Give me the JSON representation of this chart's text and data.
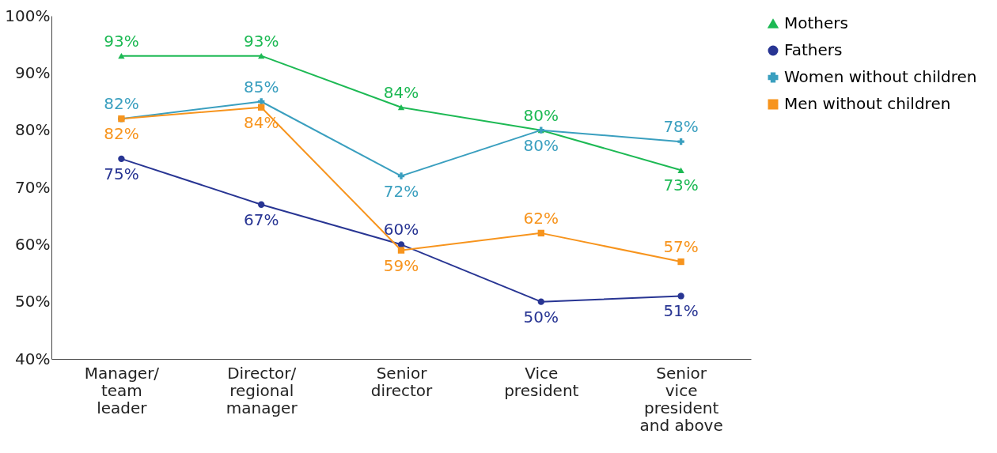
{
  "chart_data": {
    "type": "line",
    "categories": [
      "Manager/ team leader",
      "Director/ regional manager",
      "Senior director",
      "Vice president",
      "Senior vice president and above"
    ],
    "series": [
      {
        "name": "Mothers",
        "color": "#1db954",
        "marker": "triangle",
        "values": [
          93,
          93,
          84,
          80,
          73
        ],
        "value_labels": [
          "93%",
          "93%",
          "84%",
          "80%",
          "73%"
        ]
      },
      {
        "name": "Fathers",
        "color": "#283593",
        "marker": "circle",
        "values": [
          75,
          67,
          60,
          50,
          51
        ],
        "value_labels": [
          "75%",
          "67%",
          "60%",
          "50%",
          "51%"
        ]
      },
      {
        "name": "Women without children",
        "color": "#3a9fbf",
        "marker": "cross",
        "values": [
          82,
          85,
          72,
          80,
          78
        ],
        "value_labels": [
          "82%",
          "85%",
          "72%",
          "80%",
          "78%"
        ]
      },
      {
        "name": "Men without children",
        "color": "#f7941d",
        "marker": "square",
        "values": [
          82,
          84,
          59,
          62,
          57
        ],
        "value_labels": [
          "82%",
          "84%",
          "59%",
          "62%",
          "57%"
        ]
      }
    ],
    "ylim": [
      40,
      100
    ],
    "yticks": [
      {
        "value": 40,
        "label": "40%"
      },
      {
        "value": 50,
        "label": "50%"
      },
      {
        "value": 60,
        "label": "60%"
      },
      {
        "value": 70,
        "label": "70%"
      },
      {
        "value": 80,
        "label": "80%"
      },
      {
        "value": 90,
        "label": "90%"
      },
      {
        "value": 100,
        "label": "100%"
      }
    ],
    "grid": false,
    "legend": "right"
  }
}
